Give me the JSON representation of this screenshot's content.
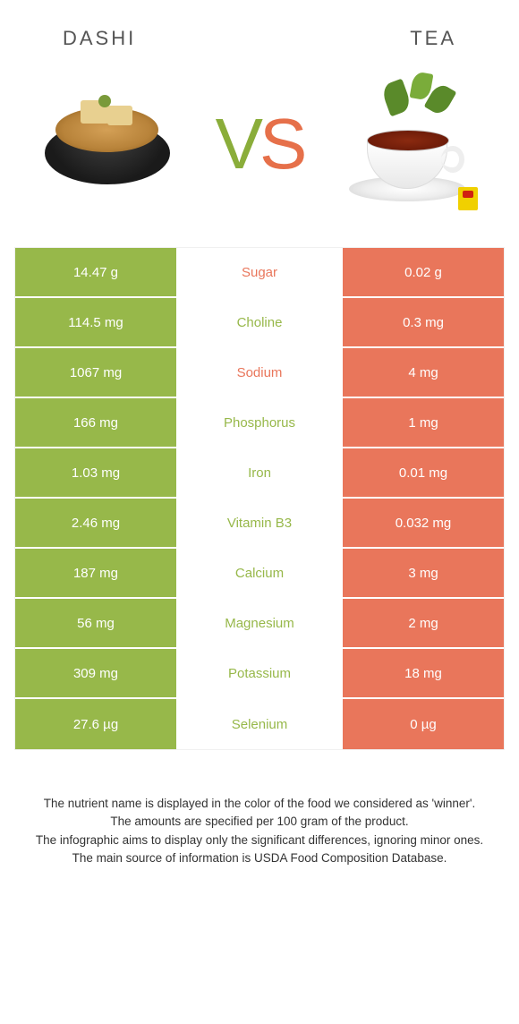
{
  "header": {
    "left_title": "DASHI",
    "right_title": "TEA"
  },
  "vs": {
    "v": "V",
    "s": "S"
  },
  "colors": {
    "left_bg": "#97b84a",
    "right_bg": "#e9765b",
    "left_text": "#ffffff",
    "right_text": "#ffffff",
    "nutrient_tea_winner": "#e9765b",
    "nutrient_dashi_winner": "#97b84a"
  },
  "rows": [
    {
      "left": "14.47 g",
      "nutrient": "Sugar",
      "right": "0.02 g",
      "winner": "tea"
    },
    {
      "left": "114.5 mg",
      "nutrient": "Choline",
      "right": "0.3 mg",
      "winner": "dashi"
    },
    {
      "left": "1067 mg",
      "nutrient": "Sodium",
      "right": "4 mg",
      "winner": "tea"
    },
    {
      "left": "166 mg",
      "nutrient": "Phosphorus",
      "right": "1 mg",
      "winner": "dashi"
    },
    {
      "left": "1.03 mg",
      "nutrient": "Iron",
      "right": "0.01 mg",
      "winner": "dashi"
    },
    {
      "left": "2.46 mg",
      "nutrient": "Vitamin B3",
      "right": "0.032 mg",
      "winner": "dashi"
    },
    {
      "left": "187 mg",
      "nutrient": "Calcium",
      "right": "3 mg",
      "winner": "dashi"
    },
    {
      "left": "56 mg",
      "nutrient": "Magnesium",
      "right": "2 mg",
      "winner": "dashi"
    },
    {
      "left": "309 mg",
      "nutrient": "Potassium",
      "right": "18 mg",
      "winner": "dashi"
    },
    {
      "left": "27.6 µg",
      "nutrient": "Selenium",
      "right": "0 µg",
      "winner": "dashi"
    }
  ],
  "footer": {
    "line1": "The nutrient name is displayed in the color of the food we considered as 'winner'.",
    "line2": "The amounts are specified per 100 gram of the product.",
    "line3": "The infographic aims to display only the significant differences, ignoring minor ones.",
    "line4": "The main source of information is USDA Food Composition Database."
  }
}
